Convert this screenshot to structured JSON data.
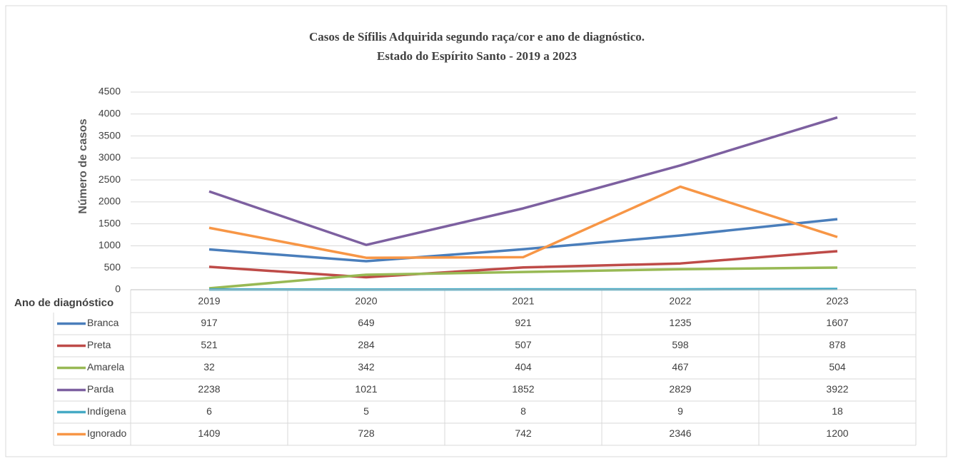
{
  "chart_data": {
    "type": "line",
    "title": "Casos de Sífilis Adquirida  segundo raça/cor e ano de diagnóstico.",
    "subtitle": "Estado do Espírito Santo - 2019 a 2023",
    "ylabel": "Número de casos",
    "xlabel": "Ano de diagnóstico",
    "categories": [
      "2019",
      "2020",
      "2021",
      "2022",
      "2023"
    ],
    "series": [
      {
        "name": "Branca",
        "color": "#4a7ebb",
        "values": [
          917,
          649,
          921,
          1235,
          1607
        ]
      },
      {
        "name": "Preta",
        "color": "#be4b48",
        "values": [
          521,
          284,
          507,
          598,
          878
        ]
      },
      {
        "name": "Amarela",
        "color": "#98b954",
        "values": [
          32,
          342,
          404,
          467,
          504
        ]
      },
      {
        "name": "Parda",
        "color": "#7d60a0",
        "values": [
          2238,
          1021,
          1852,
          2829,
          3922
        ]
      },
      {
        "name": "Indígena",
        "color": "#46aac5",
        "values": [
          6,
          5,
          8,
          9,
          18
        ]
      },
      {
        "name": "Ignorado",
        "color": "#f79646",
        "values": [
          1409,
          728,
          742,
          2346,
          1200
        ]
      }
    ],
    "ylim": [
      0,
      4500
    ],
    "yticks": [
      0,
      500,
      1000,
      1500,
      2000,
      2500,
      3000,
      3500,
      4000,
      4500
    ],
    "grid": true
  }
}
